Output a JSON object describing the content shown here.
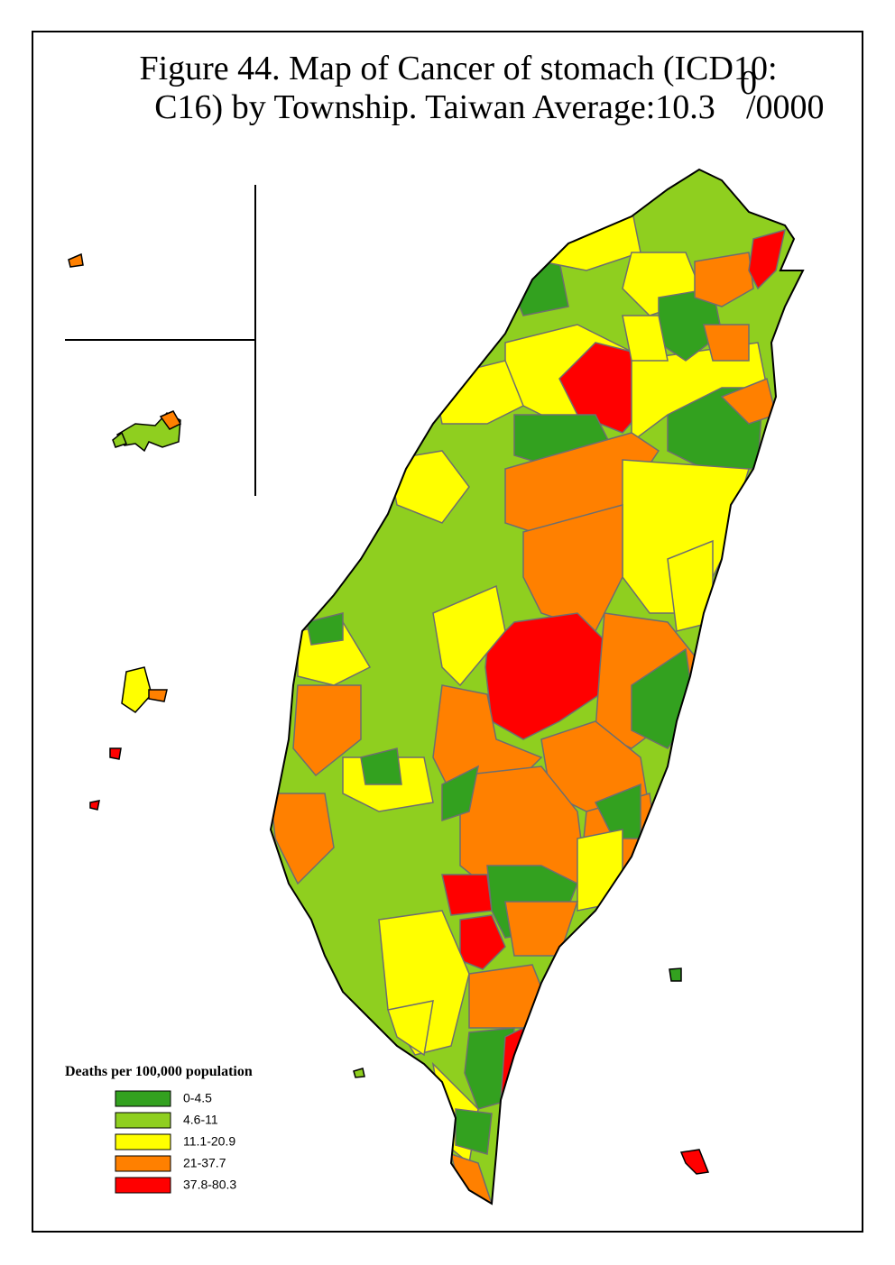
{
  "header": {
    "title_line1": "Figure 44. Map of Cancer of stomach (ICD10:",
    "title_line2": "C16) by Township. Taiwan Average:10.3",
    "title_superscript": "0",
    "title_unit": "/0000"
  },
  "legend": {
    "title": "Deaths per 100,000 population",
    "items": [
      {
        "label": "0-4.5",
        "color": "#33a11f"
      },
      {
        "label": "4.6-11",
        "color": "#8fcf1f"
      },
      {
        "label": "11.1-20.9",
        "color": "#ffff00"
      },
      {
        "label": "21-37.7",
        "color": "#ff8000"
      },
      {
        "label": "37.8-80.3",
        "color": "#ff0000"
      }
    ]
  }
}
